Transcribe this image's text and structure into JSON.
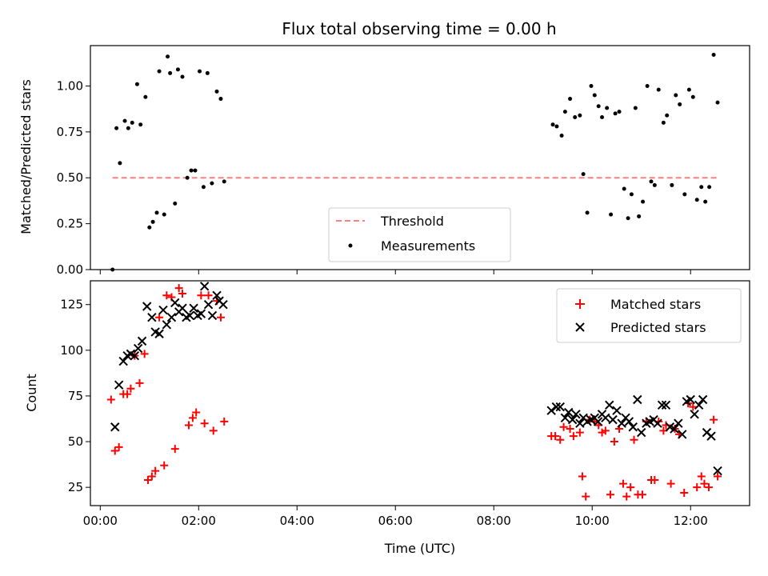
{
  "chart_data": [
    {
      "type": "scatter",
      "title": "Flux total observing time = 0.00 h",
      "xlabel": "",
      "ylabel": "Matched/Predicted stars",
      "xlim": [
        -0.2,
        13.2
      ],
      "ylim": [
        0,
        1.22
      ],
      "yticks": [
        "0.00",
        "0.25",
        "0.50",
        "0.75",
        "1.00"
      ],
      "ytick_values": [
        0,
        0.25,
        0.5,
        0.75,
        1.0
      ],
      "xtick_values": [
        0,
        2,
        4,
        6,
        8,
        10,
        12
      ],
      "legend_position": "lower-center",
      "threshold": {
        "name": "Threshold",
        "value": 0.5,
        "x": [
          0.25,
          12.55
        ],
        "color": "#ff7f7f"
      },
      "series": [
        {
          "name": "Measurements",
          "color": "#000000",
          "points": [
            [
              0.25,
              0.0
            ],
            [
              0.33,
              0.77
            ],
            [
              0.4,
              0.58
            ],
            [
              0.5,
              0.81
            ],
            [
              0.57,
              0.77
            ],
            [
              0.65,
              0.8
            ],
            [
              0.75,
              1.01
            ],
            [
              0.82,
              0.79
            ],
            [
              0.92,
              0.94
            ],
            [
              1.0,
              0.23
            ],
            [
              1.07,
              0.26
            ],
            [
              1.15,
              0.31
            ],
            [
              1.2,
              1.08
            ],
            [
              1.3,
              0.3
            ],
            [
              1.37,
              1.16
            ],
            [
              1.42,
              1.07
            ],
            [
              1.52,
              0.36
            ],
            [
              1.58,
              1.09
            ],
            [
              1.67,
              1.05
            ],
            [
              1.77,
              0.5
            ],
            [
              1.85,
              0.54
            ],
            [
              1.93,
              0.54
            ],
            [
              2.02,
              1.08
            ],
            [
              2.1,
              0.45
            ],
            [
              2.18,
              1.07
            ],
            [
              2.27,
              0.47
            ],
            [
              2.37,
              0.97
            ],
            [
              2.45,
              0.93
            ],
            [
              2.52,
              0.48
            ],
            [
              9.2,
              0.79
            ],
            [
              9.28,
              0.78
            ],
            [
              9.38,
              0.73
            ],
            [
              9.45,
              0.86
            ],
            [
              9.55,
              0.93
            ],
            [
              9.65,
              0.83
            ],
            [
              9.75,
              0.84
            ],
            [
              9.82,
              0.52
            ],
            [
              9.9,
              0.31
            ],
            [
              9.98,
              1.0
            ],
            [
              10.05,
              0.95
            ],
            [
              10.13,
              0.89
            ],
            [
              10.2,
              0.83
            ],
            [
              10.3,
              0.88
            ],
            [
              10.38,
              0.3
            ],
            [
              10.47,
              0.85
            ],
            [
              10.55,
              0.86
            ],
            [
              10.65,
              0.44
            ],
            [
              10.73,
              0.28
            ],
            [
              10.8,
              0.41
            ],
            [
              10.88,
              0.88
            ],
            [
              10.95,
              0.29
            ],
            [
              11.03,
              0.37
            ],
            [
              11.12,
              1.0
            ],
            [
              11.2,
              0.48
            ],
            [
              11.27,
              0.46
            ],
            [
              11.35,
              0.98
            ],
            [
              11.45,
              0.8
            ],
            [
              11.52,
              0.84
            ],
            [
              11.62,
              0.46
            ],
            [
              11.7,
              0.95
            ],
            [
              11.78,
              0.9
            ],
            [
              11.88,
              0.41
            ],
            [
              11.97,
              0.98
            ],
            [
              12.05,
              0.94
            ],
            [
              12.13,
              0.38
            ],
            [
              12.22,
              0.45
            ],
            [
              12.3,
              0.37
            ],
            [
              12.38,
              0.45
            ],
            [
              12.47,
              1.17
            ],
            [
              12.55,
              0.91
            ]
          ]
        }
      ]
    },
    {
      "type": "scatter",
      "title": "",
      "xlabel": "Time (UTC)",
      "ylabel": "Count",
      "xlim": [
        -0.2,
        13.2
      ],
      "ylim": [
        15,
        138
      ],
      "yticks": [
        "25",
        "50",
        "75",
        "100",
        "125"
      ],
      "ytick_values": [
        25,
        50,
        75,
        100,
        125
      ],
      "xticks": [
        "00:00",
        "02:00",
        "04:00",
        "06:00",
        "08:00",
        "10:00",
        "12:00"
      ],
      "xtick_values": [
        0,
        2,
        4,
        6,
        8,
        10,
        12
      ],
      "legend_position": "top-right",
      "series": [
        {
          "name": "Matched stars",
          "marker": "+",
          "color": "#ff0000",
          "points": [
            [
              0.22,
              73
            ],
            [
              0.3,
              45
            ],
            [
              0.38,
              47
            ],
            [
              0.47,
              76
            ],
            [
              0.55,
              76
            ],
            [
              0.62,
              79
            ],
            [
              0.7,
              97
            ],
            [
              0.8,
              82
            ],
            [
              0.9,
              98
            ],
            [
              0.97,
              29
            ],
            [
              1.05,
              31
            ],
            [
              1.12,
              34
            ],
            [
              1.2,
              118
            ],
            [
              1.3,
              37
            ],
            [
              1.35,
              130
            ],
            [
              1.45,
              129
            ],
            [
              1.52,
              46
            ],
            [
              1.6,
              134
            ],
            [
              1.67,
              131
            ],
            [
              1.8,
              59
            ],
            [
              1.88,
              63
            ],
            [
              1.95,
              66
            ],
            [
              2.05,
              130
            ],
            [
              2.12,
              60
            ],
            [
              2.2,
              130
            ],
            [
              2.3,
              56
            ],
            [
              2.37,
              127
            ],
            [
              2.45,
              118
            ],
            [
              2.52,
              61
            ],
            [
              9.17,
              53
            ],
            [
              9.25,
              53
            ],
            [
              9.35,
              51
            ],
            [
              9.42,
              58
            ],
            [
              9.55,
              57
            ],
            [
              9.62,
              53
            ],
            [
              9.75,
              55
            ],
            [
              9.8,
              31
            ],
            [
              9.87,
              20
            ],
            [
              9.95,
              62
            ],
            [
              10.05,
              61
            ],
            [
              10.13,
              59
            ],
            [
              10.2,
              55
            ],
            [
              10.27,
              56
            ],
            [
              10.37,
              21
            ],
            [
              10.45,
              50
            ],
            [
              10.55,
              57
            ],
            [
              10.63,
              27
            ],
            [
              10.7,
              20
            ],
            [
              10.78,
              25
            ],
            [
              10.85,
              51
            ],
            [
              10.93,
              21
            ],
            [
              11.02,
              21
            ],
            [
              11.1,
              61
            ],
            [
              11.2,
              29
            ],
            [
              11.27,
              29
            ],
            [
              11.35,
              61
            ],
            [
              11.45,
              56
            ],
            [
              11.5,
              59
            ],
            [
              11.6,
              27
            ],
            [
              11.68,
              57
            ],
            [
              11.77,
              54
            ],
            [
              11.87,
              22
            ],
            [
              11.95,
              71
            ],
            [
              12.05,
              69
            ],
            [
              12.13,
              25
            ],
            [
              12.22,
              31
            ],
            [
              12.28,
              27
            ],
            [
              12.37,
              25
            ],
            [
              12.47,
              62
            ],
            [
              12.55,
              31
            ]
          ]
        },
        {
          "name": "Predicted stars",
          "marker": "x",
          "color": "#000000",
          "points": [
            [
              0.3,
              58
            ],
            [
              0.38,
              81
            ],
            [
              0.47,
              94
            ],
            [
              0.55,
              97
            ],
            [
              0.62,
              98
            ],
            [
              0.7,
              97
            ],
            [
              0.77,
              101
            ],
            [
              0.85,
              105
            ],
            [
              0.95,
              124
            ],
            [
              1.05,
              118
            ],
            [
              1.12,
              110
            ],
            [
              1.2,
              109
            ],
            [
              1.28,
              122
            ],
            [
              1.35,
              114
            ],
            [
              1.45,
              118
            ],
            [
              1.52,
              126
            ],
            [
              1.6,
              121
            ],
            [
              1.67,
              123
            ],
            [
              1.75,
              118
            ],
            [
              1.82,
              119
            ],
            [
              1.9,
              123
            ],
            [
              1.98,
              119
            ],
            [
              2.05,
              120
            ],
            [
              2.12,
              135
            ],
            [
              2.2,
              125
            ],
            [
              2.28,
              119
            ],
            [
              2.37,
              130
            ],
            [
              2.42,
              127
            ],
            [
              2.5,
              125
            ],
            [
              9.17,
              67
            ],
            [
              9.27,
              69
            ],
            [
              9.35,
              69
            ],
            [
              9.45,
              63
            ],
            [
              9.52,
              66
            ],
            [
              9.6,
              62
            ],
            [
              9.67,
              65
            ],
            [
              9.75,
              60
            ],
            [
              9.82,
              63
            ],
            [
              9.9,
              61
            ],
            [
              9.97,
              62
            ],
            [
              10.05,
              63
            ],
            [
              10.12,
              61
            ],
            [
              10.2,
              65
            ],
            [
              10.27,
              63
            ],
            [
              10.35,
              70
            ],
            [
              10.42,
              62
            ],
            [
              10.5,
              67
            ],
            [
              10.6,
              60
            ],
            [
              10.68,
              63
            ],
            [
              10.75,
              61
            ],
            [
              10.83,
              58
            ],
            [
              10.92,
              73
            ],
            [
              11.0,
              55
            ],
            [
              11.1,
              60
            ],
            [
              11.17,
              61
            ],
            [
              11.25,
              62
            ],
            [
              11.33,
              60
            ],
            [
              11.42,
              70
            ],
            [
              11.5,
              70
            ],
            [
              11.58,
              58
            ],
            [
              11.67,
              57
            ],
            [
              11.75,
              60
            ],
            [
              11.83,
              54
            ],
            [
              11.92,
              72
            ],
            [
              12.0,
              73
            ],
            [
              12.08,
              65
            ],
            [
              12.17,
              70
            ],
            [
              12.25,
              73
            ],
            [
              12.33,
              55
            ],
            [
              12.42,
              53
            ],
            [
              12.55,
              34
            ]
          ]
        }
      ]
    }
  ]
}
